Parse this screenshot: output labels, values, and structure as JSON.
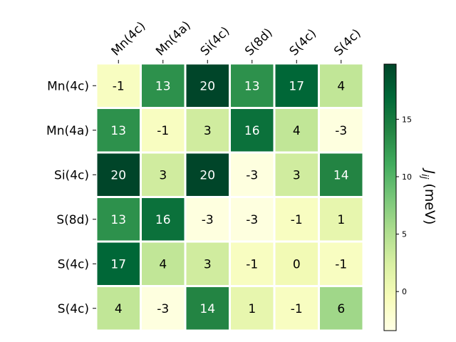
{
  "chart_data": {
    "type": "heatmap",
    "x_labels": [
      "Mn(4c)",
      "Mn(4a)",
      "Si(4c)",
      "S(8d)",
      "S(4c)",
      "S(4c)"
    ],
    "y_labels": [
      "Mn(4c)",
      "Mn(4a)",
      "Si(4c)",
      "S(8d)",
      "S(4c)",
      "S(4c)"
    ],
    "x_label_position": "top",
    "values": [
      [
        -1,
        13,
        20,
        13,
        17,
        4
      ],
      [
        13,
        -1,
        3,
        16,
        4,
        -3
      ],
      [
        20,
        3,
        20,
        -3,
        3,
        14
      ],
      [
        13,
        16,
        -3,
        -3,
        -1,
        1
      ],
      [
        17,
        4,
        3,
        -1,
        0,
        -1
      ],
      [
        4,
        -3,
        14,
        1,
        -1,
        6
      ]
    ],
    "cell_labels": [
      [
        "-1",
        "13",
        "20",
        "13",
        "17",
        "4"
      ],
      [
        "13",
        "-1",
        "3",
        "16",
        "4",
        "-3"
      ],
      [
        "20",
        "3",
        "20",
        "-3",
        "3",
        "14"
      ],
      [
        "13",
        "16",
        "-3",
        "-3",
        "-1",
        "1"
      ],
      [
        "17",
        "4",
        "3",
        "-1",
        "0",
        "-1"
      ],
      [
        "4",
        "-3",
        "14",
        "1",
        "-1",
        "6"
      ]
    ],
    "colormap": "YlGn",
    "color_range": [
      -3.4,
      19.8
    ],
    "colorbar": {
      "label": "J_ij (meV)",
      "label_main": "J",
      "label_sub": "ij",
      "label_rest": " (meV)",
      "ticks": [
        0,
        5,
        10,
        15
      ],
      "tick_labels": [
        "0",
        "5",
        "10",
        "15"
      ],
      "position": "right"
    },
    "grid": false
  }
}
